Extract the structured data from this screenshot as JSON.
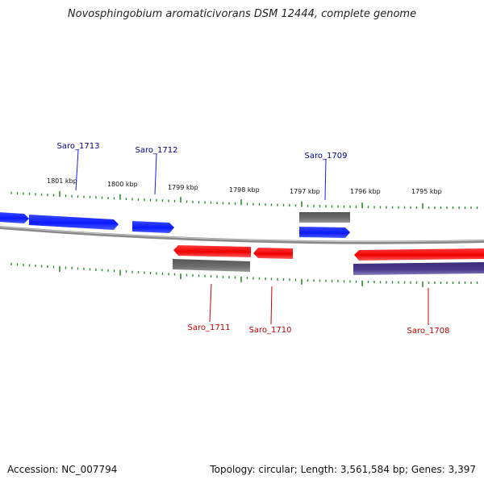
{
  "title": "Novosphingobium aromaticivorans DSM 12444, complete genome",
  "footer": {
    "accession": "Accession: NC_007794",
    "summary": "Topology: circular; Length: 3,561,584 bp; Genes: 3,397"
  },
  "scale_labels": [
    "1801 kbp",
    "1800 kbp",
    "1799 kbp",
    "1798 kbp",
    "1797 kbp",
    "1796 kbp",
    "1795 kbp"
  ],
  "gene_labels": {
    "forward": [
      "Saro_1713",
      "Saro_1712",
      "Saro_1709"
    ],
    "reverse": [
      "Saro_1711",
      "Saro_1710",
      "Saro_1708"
    ]
  },
  "colors": {
    "forward_gene": "#0a1aff",
    "reverse_gene": "#ff0000",
    "gray_feature": "#6e6e6e",
    "purple_feature": "#4b3a8c",
    "tick": "#2e8b2e",
    "backbone": "#7a7a7a",
    "forward_label": "#00008b",
    "reverse_label": "#c00000"
  }
}
